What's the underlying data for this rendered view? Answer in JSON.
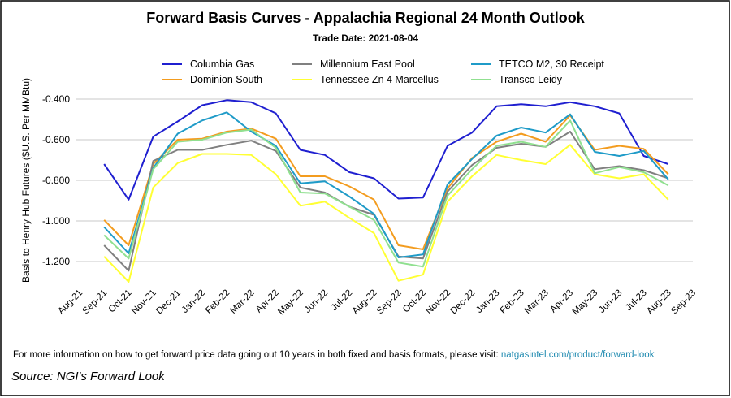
{
  "chart_data": {
    "type": "line",
    "title": "Forward Basis Curves - Appalachia Regional 24 Month Outlook",
    "subtitle": "Trade Date: 2021-08-04",
    "y_label": "Basis to Henry Hub Futures ($U.S. Per MMBtu)",
    "footnote": "For more information on how to get forward price data going out 10 years in both fixed and basis formats, please visit: ",
    "link": "natgasintel.com/product/forward-look",
    "source": "Source: NGI's Forward Look",
    "categories": [
      "Aug-21",
      "Sep-21",
      "Oct-21",
      "Nov-21",
      "Dec-21",
      "Jan-22",
      "Feb-22",
      "Mar-22",
      "Apr-22",
      "May-22",
      "Jun-22",
      "Jul-22",
      "Aug-22",
      "Sep-22",
      "Oct-22",
      "Nov-22",
      "Dec-22",
      "Jan-23",
      "Feb-23",
      "Mar-23",
      "Apr-23",
      "May-23",
      "Jun-23",
      "Jul-23",
      "Aug-23",
      "Sep-23"
    ],
    "ylim": [
      -1.3,
      -0.3
    ],
    "yticks": [
      {
        "value": -0.4,
        "label": "-0.400"
      },
      {
        "value": -0.6,
        "label": "-0.600"
      },
      {
        "value": -0.8,
        "label": "-0.800"
      },
      {
        "value": -1.0,
        "label": "-1.000"
      },
      {
        "value": -1.2,
        "label": "-1.200"
      }
    ],
    "grid": true,
    "series": [
      {
        "name": "Columbia Gas",
        "color": "#1f1fd0",
        "values": [
          null,
          -0.72,
          -0.895,
          -0.585,
          -0.51,
          -0.43,
          -0.405,
          -0.415,
          -0.47,
          -0.65,
          -0.675,
          -0.76,
          -0.79,
          -0.89,
          -0.885,
          -0.63,
          -0.565,
          -0.435,
          -0.425,
          -0.435,
          -0.415,
          -0.435,
          -0.47,
          -0.68,
          -0.72,
          null
        ]
      },
      {
        "name": "Dominion South",
        "color": "#f39c1f",
        "values": [
          null,
          -0.995,
          -1.12,
          -0.72,
          -0.6,
          -0.595,
          -0.56,
          -0.545,
          -0.595,
          -0.78,
          -0.78,
          -0.83,
          -0.895,
          -1.12,
          -1.14,
          -0.84,
          -0.69,
          -0.61,
          -0.57,
          -0.61,
          -0.48,
          -0.65,
          -0.63,
          -0.645,
          -0.77,
          null
        ]
      },
      {
        "name": "Millennium East Pool",
        "color": "#808080",
        "values": [
          null,
          -1.12,
          -1.245,
          -0.705,
          -0.65,
          -0.65,
          -0.625,
          -0.605,
          -0.655,
          -0.835,
          -0.86,
          -0.93,
          -0.97,
          -1.175,
          -1.185,
          -0.855,
          -0.725,
          -0.64,
          -0.62,
          -0.635,
          -0.56,
          -0.745,
          -0.73,
          -0.75,
          -0.79,
          null
        ]
      },
      {
        "name": "Tennessee Zn 4 Marcellus",
        "color": "#ffff33",
        "values": [
          null,
          -1.175,
          -1.3,
          -0.835,
          -0.715,
          -0.67,
          -0.67,
          -0.675,
          -0.77,
          -0.925,
          -0.905,
          -0.985,
          -1.06,
          -1.295,
          -1.265,
          -0.905,
          -0.78,
          -0.675,
          -0.7,
          -0.72,
          -0.625,
          -0.77,
          -0.79,
          -0.77,
          -0.895,
          null
        ]
      },
      {
        "name": "TETCO M2, 30 Receipt",
        "color": "#1f9bc8",
        "values": [
          null,
          -1.03,
          -1.16,
          -0.74,
          -0.57,
          -0.505,
          -0.465,
          -0.56,
          -0.63,
          -0.815,
          -0.805,
          -0.88,
          -0.965,
          -1.18,
          -1.165,
          -0.82,
          -0.695,
          -0.58,
          -0.54,
          -0.565,
          -0.475,
          -0.66,
          -0.68,
          -0.655,
          -0.795,
          null
        ]
      },
      {
        "name": "Transco Leidy",
        "color": "#90e090",
        "values": [
          null,
          -1.07,
          -1.185,
          -0.745,
          -0.61,
          -0.6,
          -0.565,
          -0.55,
          -0.64,
          -0.86,
          -0.865,
          -0.93,
          -0.995,
          -1.205,
          -1.225,
          -0.875,
          -0.745,
          -0.63,
          -0.61,
          -0.635,
          -0.505,
          -0.765,
          -0.735,
          -0.76,
          -0.825,
          null
        ]
      }
    ]
  }
}
